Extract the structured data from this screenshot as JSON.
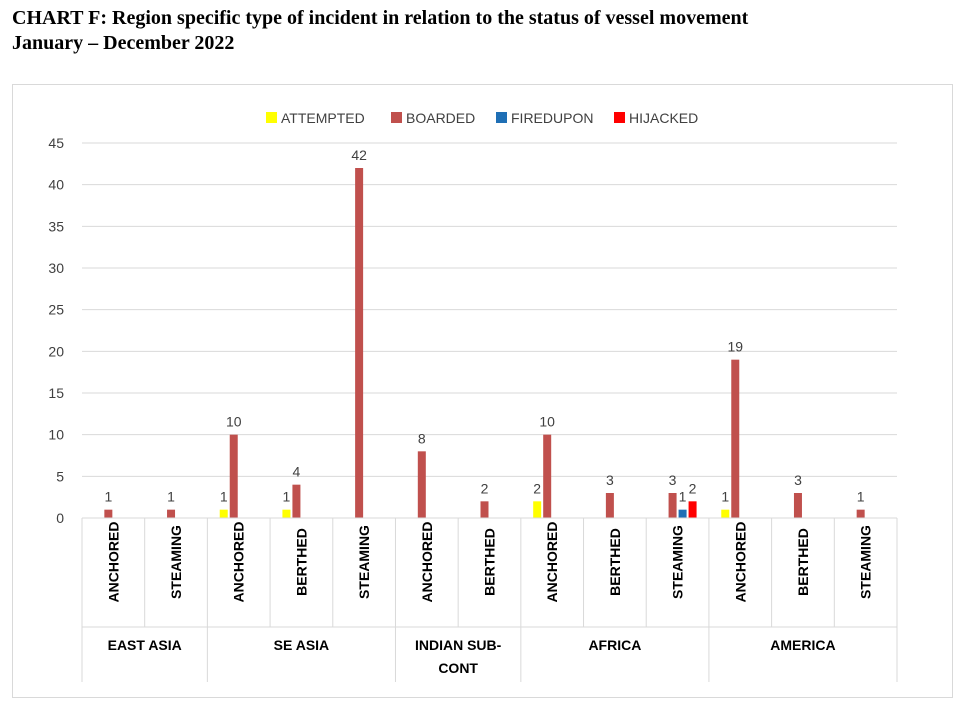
{
  "heading": {
    "line1": "CHART F:  Region specific type of incident in relation to the status of vessel movement",
    "line2": "January – December 2022"
  },
  "chart_data": {
    "type": "bar",
    "ylim": [
      0,
      45
    ],
    "yticks": [
      0,
      5,
      10,
      15,
      20,
      25,
      30,
      35,
      40,
      45
    ],
    "grid": true,
    "legend_position": "top",
    "groups": [
      {
        "name": "EAST ASIA",
        "categories": [
          "ANCHORED",
          "STEAMING"
        ]
      },
      {
        "name": "SE ASIA",
        "categories": [
          "ANCHORED",
          "BERTHED",
          "STEAMING"
        ]
      },
      {
        "name": "INDIAN SUB-CONT",
        "categories": [
          "ANCHORED",
          "BERTHED"
        ]
      },
      {
        "name": "AFRICA",
        "categories": [
          "ANCHORED",
          "BERTHED",
          "STEAMING"
        ]
      },
      {
        "name": "AMERICA",
        "categories": [
          "ANCHORED",
          "BERTHED",
          "STEAMING"
        ]
      }
    ],
    "categories": [
      "ANCHORED",
      "STEAMING",
      "ANCHORED",
      "BERTHED",
      "STEAMING",
      "ANCHORED",
      "BERTHED",
      "ANCHORED",
      "BERTHED",
      "STEAMING",
      "ANCHORED",
      "BERTHED",
      "STEAMING"
    ],
    "series": [
      {
        "name": "ATTEMPTED",
        "color": "#ffff00",
        "values": [
          null,
          null,
          1,
          1,
          null,
          null,
          null,
          2,
          null,
          null,
          1,
          null,
          null
        ]
      },
      {
        "name": "BOARDED",
        "color": "#c0504d",
        "values": [
          1,
          1,
          10,
          4,
          42,
          8,
          2,
          10,
          3,
          3,
          19,
          3,
          1
        ]
      },
      {
        "name": "FIREDUPON",
        "color": "#1f6fb5",
        "values": [
          null,
          null,
          null,
          null,
          null,
          null,
          null,
          null,
          null,
          1,
          null,
          null,
          null
        ]
      },
      {
        "name": "HIJACKED",
        "color": "#ff0000",
        "values": [
          null,
          null,
          null,
          null,
          null,
          null,
          null,
          null,
          null,
          2,
          null,
          null,
          null
        ]
      }
    ]
  }
}
